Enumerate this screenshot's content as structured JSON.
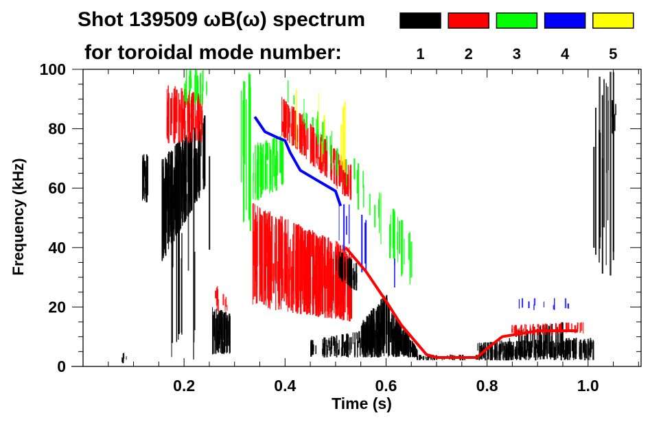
{
  "chart_data": {
    "type": "heatmap",
    "title_line1": "Shot 139509 ωB(ω) spectrum",
    "title_line2": "for toroidal mode number:",
    "xlabel": "Time (s)",
    "ylabel": "Frequency (kHz)",
    "xlim": [
      0,
      1.105
    ],
    "ylim": [
      0,
      100
    ],
    "xticks": [
      0.2,
      0.4,
      0.6,
      0.8,
      1.0
    ],
    "xtick_labels": [
      "0.2",
      "0.4",
      "0.6",
      "0.8",
      "1.0"
    ],
    "yticks": [
      0,
      20,
      40,
      60,
      80,
      100
    ],
    "ytick_labels": [
      "0",
      "20",
      "40",
      "60",
      "80",
      "100"
    ],
    "legend_placement": "top-right",
    "modes": [
      {
        "label": "1",
        "color": "#000000"
      },
      {
        "label": "2",
        "color": "#ff0000"
      },
      {
        "label": "3",
        "color": "#00ff00"
      },
      {
        "label": "4",
        "color": "#0000ff"
      },
      {
        "label": "5",
        "color": "#ffff00"
      }
    ],
    "regions": [
      {
        "mode": 1,
        "t": [
          0.115,
          0.13
        ],
        "f_start": [
          55,
          72
        ],
        "f_end": [
          55,
          72
        ],
        "n": 18
      },
      {
        "mode": 1,
        "t": [
          0.155,
          0.24
        ],
        "f_start": [
          35,
          70
        ],
        "f_end": [
          60,
          85
        ],
        "n": 140
      },
      {
        "mode": 1,
        "t": [
          0.17,
          0.25
        ],
        "f_start": [
          2,
          60
        ],
        "f_end": [
          2,
          80
        ],
        "n": 14
      },
      {
        "mode": 2,
        "t": [
          0.165,
          0.235
        ],
        "f_start": [
          75,
          95
        ],
        "f_end": [
          75,
          92
        ],
        "n": 70
      },
      {
        "mode": 3,
        "t": [
          0.2,
          0.245
        ],
        "f_start": [
          88,
          100
        ],
        "f_end": [
          88,
          100
        ],
        "n": 25
      },
      {
        "mode": 1,
        "t": [
          0.255,
          0.29
        ],
        "f_start": [
          4,
          20
        ],
        "f_end": [
          4,
          18
        ],
        "n": 45
      },
      {
        "mode": 2,
        "t": [
          0.26,
          0.285
        ],
        "f_start": [
          18,
          28
        ],
        "f_end": [
          18,
          24
        ],
        "n": 10
      },
      {
        "mode": 3,
        "t": [
          0.31,
          0.33
        ],
        "f_start": [
          45,
          100
        ],
        "f_end": [
          45,
          100
        ],
        "n": 10
      },
      {
        "mode": 2,
        "t": [
          0.335,
          0.53
        ],
        "f_start": [
          20,
          55
        ],
        "f_end": [
          15,
          40
        ],
        "n": 280
      },
      {
        "mode": 3,
        "t": [
          0.335,
          0.395
        ],
        "f_start": [
          55,
          75
        ],
        "f_end": [
          60,
          78
        ],
        "n": 45
      },
      {
        "mode": 2,
        "t": [
          0.39,
          0.53
        ],
        "f_start": [
          78,
          92
        ],
        "f_end": [
          55,
          68
        ],
        "n": 110
      },
      {
        "mode": 3,
        "t": [
          0.4,
          0.65
        ],
        "f_start": [
          90,
          100
        ],
        "f_end": [
          25,
          45
        ],
        "n": 45
      },
      {
        "mode": 1,
        "t": [
          0.5,
          0.54
        ],
        "f_start": [
          30,
          40
        ],
        "f_end": [
          25,
          35
        ],
        "n": 28
      },
      {
        "mode": 1,
        "t": [
          0.55,
          0.6
        ],
        "f_start": [
          3,
          15
        ],
        "f_end": [
          3,
          25
        ],
        "n": 90
      },
      {
        "mode": 1,
        "t": [
          0.6,
          0.66
        ],
        "f_start": [
          3,
          22
        ],
        "f_end": [
          3,
          6
        ],
        "n": 80
      },
      {
        "mode": 1,
        "t": [
          0.45,
          0.55
        ],
        "f_start": [
          3,
          9
        ],
        "f_end": [
          3,
          12
        ],
        "n": 60
      },
      {
        "mode": 1,
        "t": [
          0.66,
          0.78
        ],
        "f_start": [
          2,
          4
        ],
        "f_end": [
          2,
          4
        ],
        "n": 40
      },
      {
        "mode": 1,
        "t": [
          0.78,
          1.01
        ],
        "f_start": [
          2,
          8
        ],
        "f_end": [
          2,
          10
        ],
        "n": 200
      },
      {
        "mode": 1,
        "t": [
          0.82,
          0.95
        ],
        "f_start": [
          3,
          12
        ],
        "f_end": [
          3,
          15
        ],
        "n": 50
      },
      {
        "mode": 2,
        "t": [
          0.84,
          0.99
        ],
        "f_start": [
          10,
          14
        ],
        "f_end": [
          11,
          15
        ],
        "n": 60
      },
      {
        "mode": 4,
        "t": [
          0.86,
          0.96
        ],
        "f_start": [
          19,
          23
        ],
        "f_end": [
          19,
          23
        ],
        "n": 10
      },
      {
        "mode": 1,
        "t": [
          1.01,
          1.05
        ],
        "f_start": [
          30,
          100
        ],
        "f_end": [
          30,
          100
        ],
        "n": 15
      },
      {
        "mode": 1,
        "t": [
          1.045,
          1.055
        ],
        "f_start": [
          78,
          90
        ],
        "f_end": [
          78,
          90
        ],
        "n": 8
      },
      {
        "mode": 1,
        "t": [
          0.075,
          0.085
        ],
        "f_start": [
          1,
          5
        ],
        "f_end": [
          1,
          5
        ],
        "n": 5
      },
      {
        "mode": 4,
        "t": [
          0.5,
          0.62
        ],
        "f_start": [
          40,
          60
        ],
        "f_end": [
          20,
          40
        ],
        "n": 8
      },
      {
        "mode": 5,
        "t": [
          0.42,
          0.52
        ],
        "f_start": [
          70,
          95
        ],
        "f_end": [
          65,
          90
        ],
        "n": 8
      }
    ],
    "lines": [
      {
        "mode": 4,
        "points": [
          [
            0.34,
            84
          ],
          [
            0.36,
            79
          ],
          [
            0.385,
            77
          ],
          [
            0.4,
            76
          ],
          [
            0.41,
            72
          ],
          [
            0.43,
            66
          ],
          [
            0.46,
            63
          ],
          [
            0.48,
            61
          ],
          [
            0.5,
            59
          ],
          [
            0.51,
            54
          ]
        ]
      },
      {
        "mode": 2,
        "points": [
          [
            0.52,
            40
          ],
          [
            0.56,
            32
          ],
          [
            0.6,
            22
          ],
          [
            0.63,
            14
          ],
          [
            0.66,
            8
          ],
          [
            0.68,
            4
          ],
          [
            0.7,
            3
          ],
          [
            0.78,
            3
          ],
          [
            0.8,
            6
          ],
          [
            0.83,
            10
          ],
          [
            0.9,
            12
          ],
          [
            0.98,
            12
          ]
        ]
      }
    ]
  }
}
